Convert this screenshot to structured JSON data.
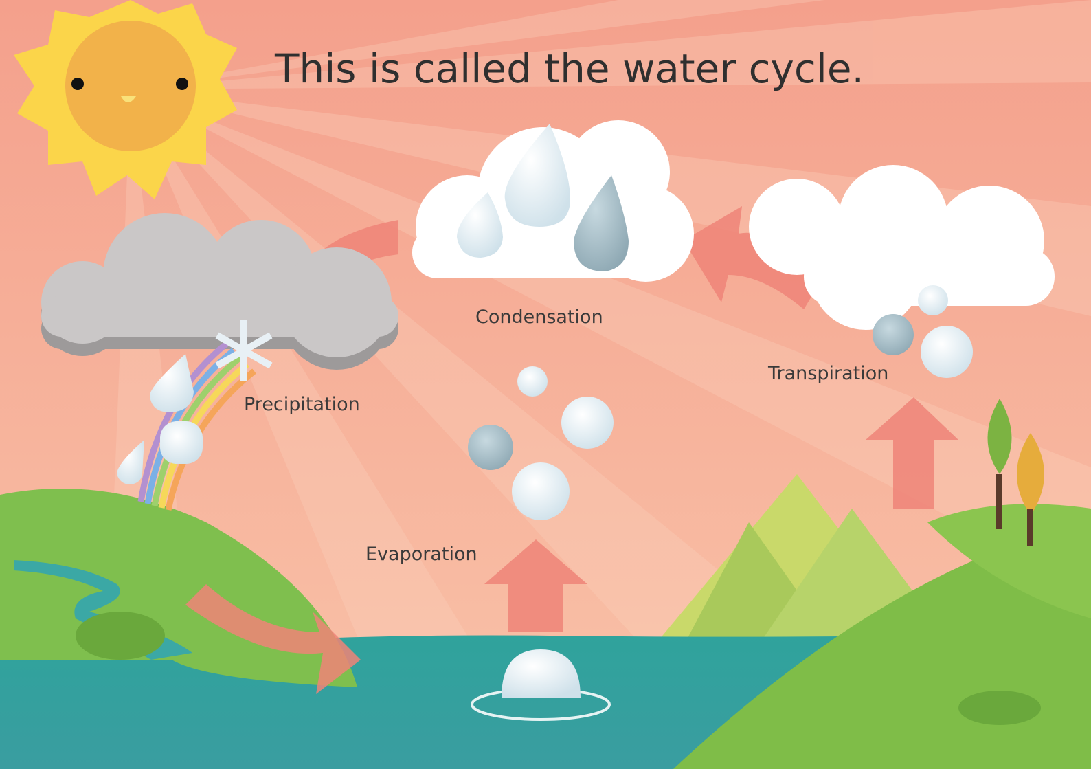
{
  "title": "This is called the water cycle.",
  "stages": {
    "condensation": "Condensation",
    "transpiration": "Transpiration",
    "precipitation": "Precipitation",
    "evaporation": "Evaporation"
  }
}
